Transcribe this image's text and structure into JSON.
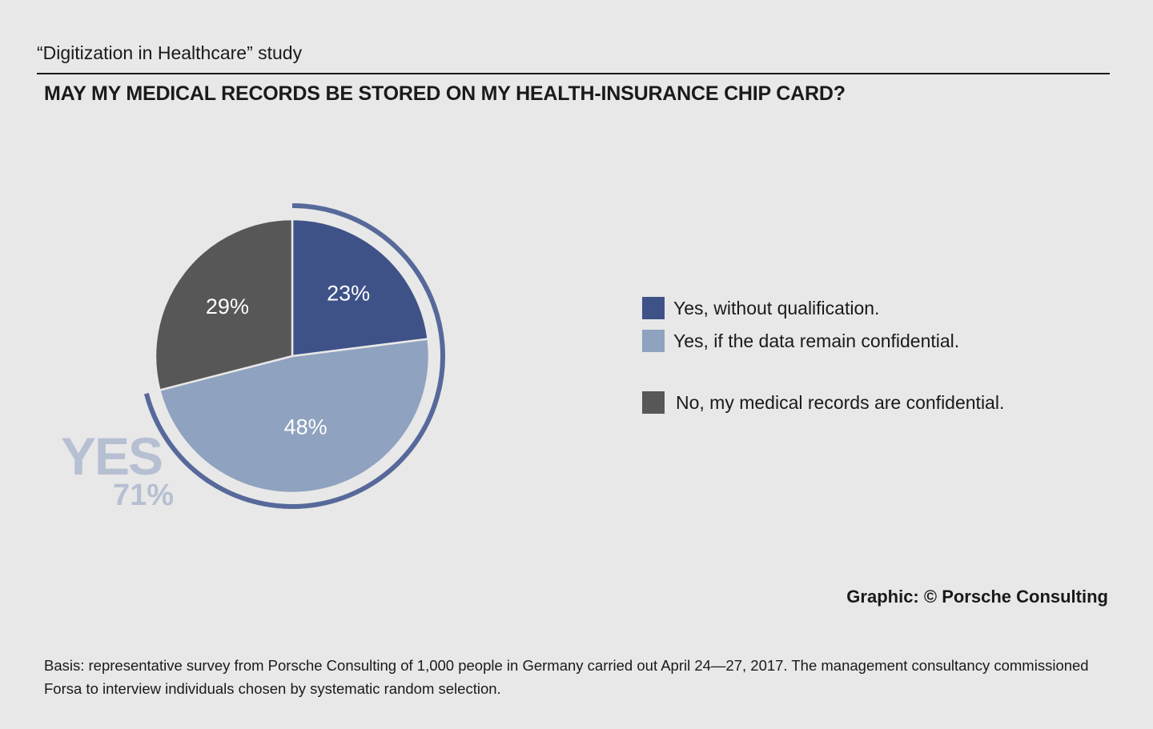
{
  "header": {
    "study_label": "“Digitization in Healthcare” study",
    "title": "MAY MY MEDICAL RECORDS BE STORED ON MY HEALTH-INSURANCE CHIP CARD?"
  },
  "chart_data": {
    "type": "pie",
    "title": "MAY MY MEDICAL RECORDS BE STORED ON MY HEALTH-INSURANCE CHIP CARD?",
    "unit": "%",
    "slices": [
      {
        "label": "Yes, without qualification.",
        "value": 23,
        "display": "23%",
        "color": "#3f5288"
      },
      {
        "label": "Yes, if the data remain confidential.",
        "value": 48,
        "display": "48%",
        "color": "#8fa2bf"
      },
      {
        "label": "No, my medical records are confidential.",
        "value": 29,
        "display": "29%",
        "color": "#575757"
      }
    ],
    "start_angle_deg": 0,
    "direction": "clockwise",
    "legend_position": "right",
    "annotation": {
      "word": "YES",
      "value": "71%",
      "spans_slices": [
        0,
        1
      ],
      "arc_color": "#57699b"
    }
  },
  "footer": {
    "credit": "Graphic: © Porsche Consulting",
    "basis": "Basis: representative survey from Porsche Consulting of 1,000 people in Germany carried out April 24—27, 2017. The management consultancy commissioned Forsa to interview individuals chosen by systematic random selection."
  }
}
